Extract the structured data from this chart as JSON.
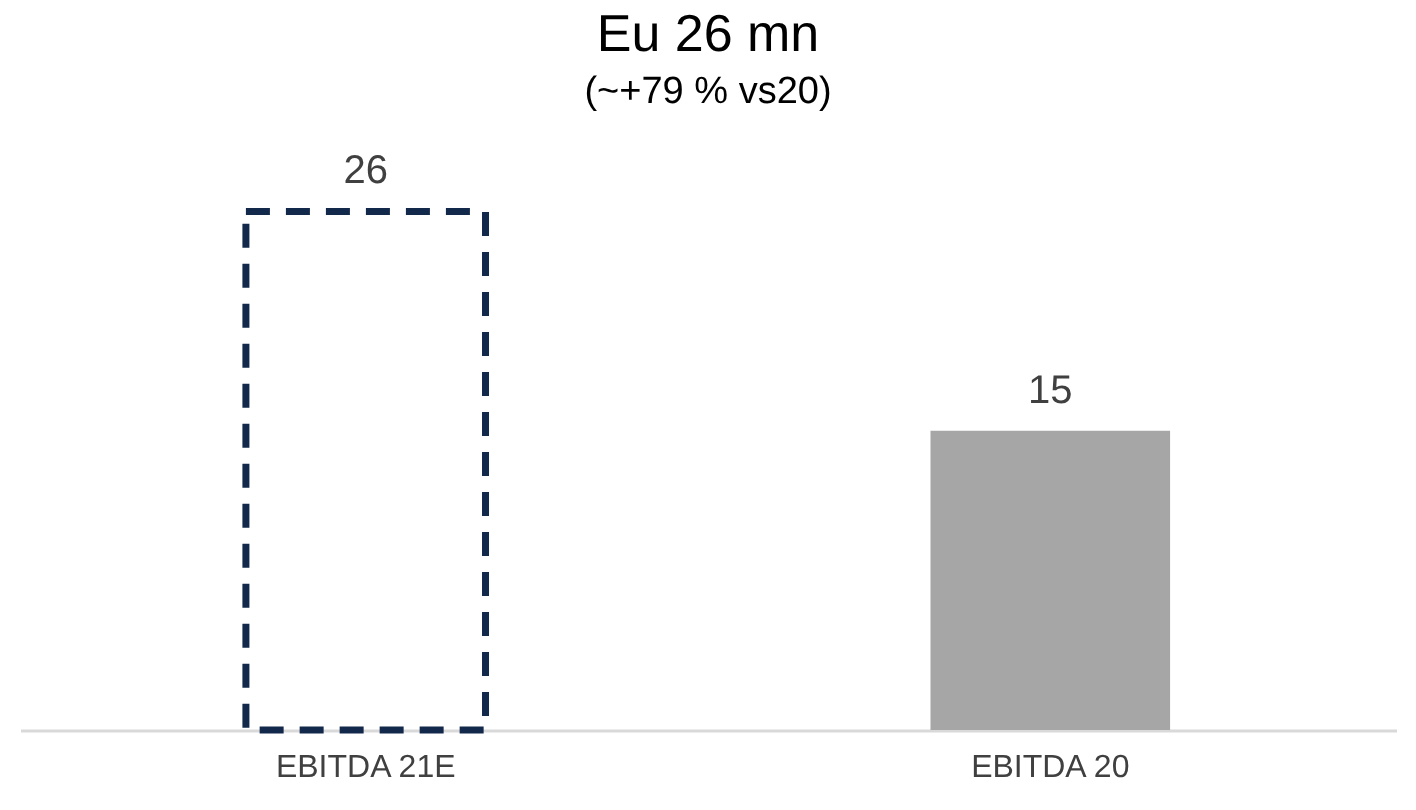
{
  "chart_data": {
    "type": "bar",
    "title": "Eu 26 mn",
    "subtitle": "(~+79 % vs20)",
    "categories": [
      "EBITDA 21E",
      "EBITDA 20"
    ],
    "series": [
      {
        "color": "#13294b",
        "values": [
          26,
          null
        ],
        "line_style": "dashed"
      },
      {
        "color": "#a6a6a6",
        "values": [
          null,
          15
        ]
      }
    ],
    "data_labels": true
  }
}
